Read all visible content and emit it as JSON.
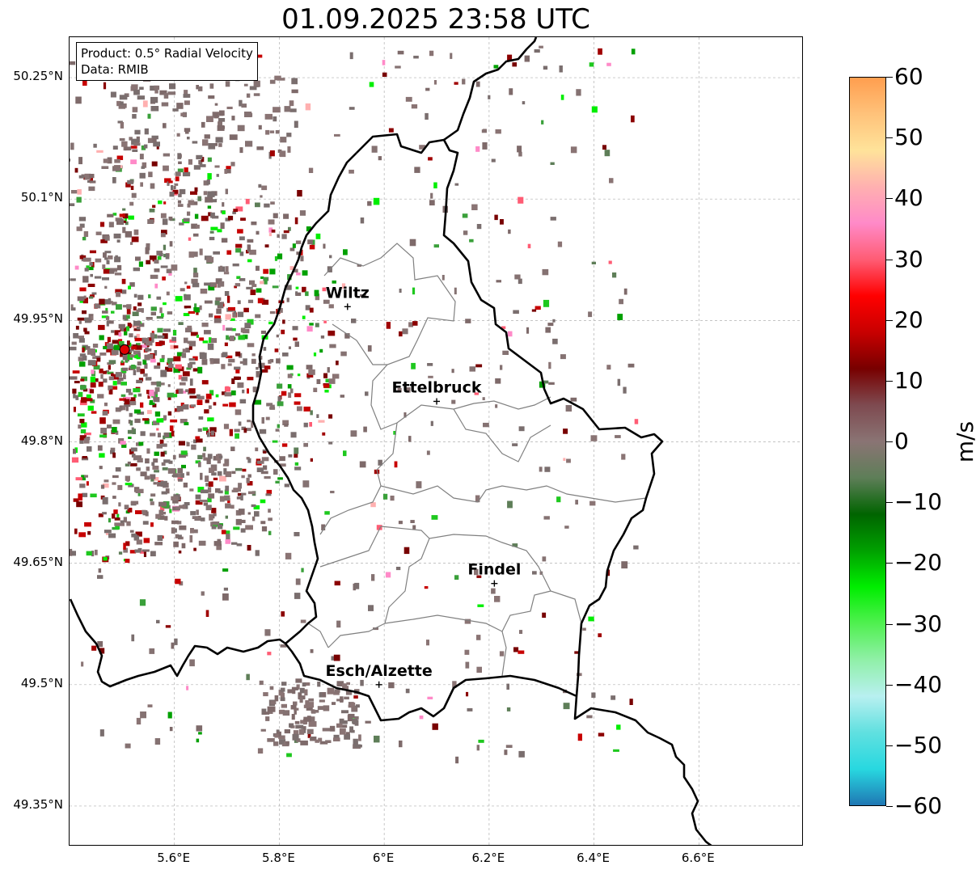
{
  "title": "01.09.2025 23:58 UTC",
  "info": {
    "product": "Product: 0.5° Radial Velocity",
    "source": "Data: RMIB"
  },
  "lat_labels": [
    "50.25°N",
    "50.1°N",
    "49.95°N",
    "49.8°N",
    "49.65°N",
    "49.5°N",
    "49.35°N"
  ],
  "lon_labels": [
    "5.6°E",
    "5.8°E",
    "6°E",
    "6.2°E",
    "6.4°E",
    "6.6°E"
  ],
  "colorbar": {
    "unit": "m/s",
    "ticks": [
      "60",
      "50",
      "40",
      "30",
      "20",
      "10",
      "0",
      "−10",
      "−20",
      "−30",
      "−40",
      "−50",
      "−60"
    ],
    "range": [
      -60,
      60
    ],
    "colors": [
      "#ff9e4f",
      "#ffc27a",
      "#ffe39a",
      "#ffb0b0",
      "#ff8ac8",
      "#ff5c74",
      "#ff0000",
      "#c80000",
      "#780000",
      "#7e4a50",
      "#8a7474",
      "#5e7e58",
      "#006400",
      "#00a000",
      "#00ee00",
      "#50f050",
      "#90f0a8",
      "#b8f0f0",
      "#60e0e0",
      "#28d8e0",
      "#1f77b4"
    ]
  },
  "cities": [
    {
      "name": "Wiltz",
      "lon": 5.93,
      "lat": 49.967
    },
    {
      "name": "Ettelbruck",
      "lon": 6.1,
      "lat": 49.85
    },
    {
      "name": "Findel",
      "lon": 6.21,
      "lat": 49.625
    },
    {
      "name": "Esch/Alzette",
      "lon": 5.99,
      "lat": 49.5
    }
  ],
  "radar_site": {
    "lon": 5.505,
    "lat": 49.914,
    "color": "#e00000"
  },
  "map_extent": {
    "lon": [
      5.4,
      6.8
    ],
    "lat": [
      49.3,
      50.3
    ]
  },
  "colors": {
    "grid": "#b0b0b0",
    "border": "#000000",
    "district": "#808080"
  }
}
